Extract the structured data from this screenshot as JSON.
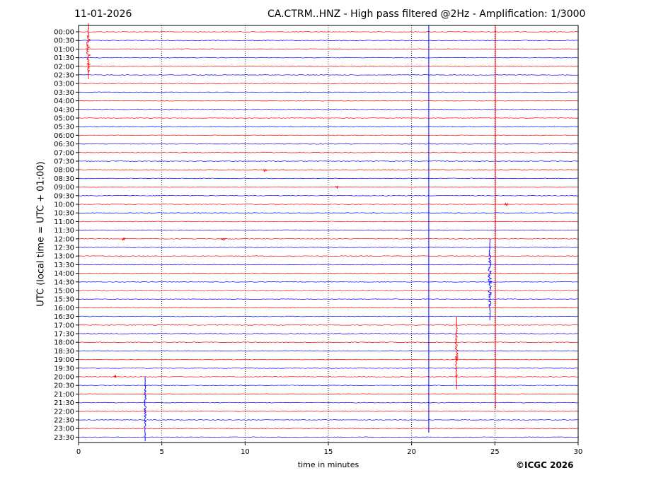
{
  "header": {
    "date": "11-01-2026",
    "title": "CA.CTRM..HNZ - High pass filtered @2Hz - Amplification: 1/3000"
  },
  "credit": "©ICGC 2026",
  "chart_data": {
    "type": "line",
    "title": "CA.CTRM..HNZ - High pass filtered @2Hz - Amplification: 1/3000",
    "xlabel": "time in minutes",
    "ylabel": "UTC (local time = UTC + 01:00)",
    "xlim": [
      0,
      30
    ],
    "x_ticks": [
      0,
      5,
      10,
      15,
      20,
      25,
      30
    ],
    "y_ticks": [
      "00:00",
      "00:30",
      "01:00",
      "01:30",
      "02:00",
      "02:30",
      "03:00",
      "03:30",
      "04:00",
      "04:30",
      "05:00",
      "05:30",
      "06:00",
      "06:30",
      "07:00",
      "07:30",
      "08:00",
      "08:30",
      "09:00",
      "09:30",
      "10:00",
      "10:30",
      "11:00",
      "11:30",
      "12:00",
      "12:30",
      "13:00",
      "13:30",
      "14:00",
      "14:30",
      "15:00",
      "15:30",
      "16:00",
      "16:30",
      "17:00",
      "17:30",
      "18:00",
      "18:30",
      "19:00",
      "19:30",
      "20:00",
      "20:30",
      "21:00",
      "21:30",
      "22:00",
      "22:30",
      "23:00",
      "23:30"
    ],
    "grid": "vertical dotted lines at 5-minute intervals",
    "trace_colors": [
      "#ff0000",
      "#0000ff"
    ],
    "events": [
      {
        "trace": "00:00",
        "minute": 0.6,
        "amplitude": 3.0,
        "span_traces": [
          0,
          6
        ]
      },
      {
        "trace": "13:30",
        "minute": 24.7,
        "amplitude": 2.5,
        "span_traces": [
          25,
          34
        ]
      },
      {
        "trace": "18:00",
        "minute": 22.7,
        "amplitude": 2.2,
        "span_traces": [
          34,
          42
        ]
      },
      {
        "trace": "22:30",
        "minute": 4.0,
        "amplitude": 1.8,
        "span_traces": [
          41,
          48
        ]
      },
      {
        "trace": "08:00",
        "minute": 11.2,
        "amplitude": 0.3
      },
      {
        "trace": "12:00",
        "minute": 8.7,
        "amplitude": 0.4
      },
      {
        "trace": "12:00",
        "minute": 2.7,
        "amplitude": 0.25
      },
      {
        "trace": "10:00",
        "minute": 25.7,
        "amplitude": 0.3
      },
      {
        "trace": "09:00",
        "minute": 15.5,
        "amplitude": 0.25
      },
      {
        "trace": "20:00",
        "minute": 2.2,
        "amplitude": 0.2
      }
    ]
  }
}
